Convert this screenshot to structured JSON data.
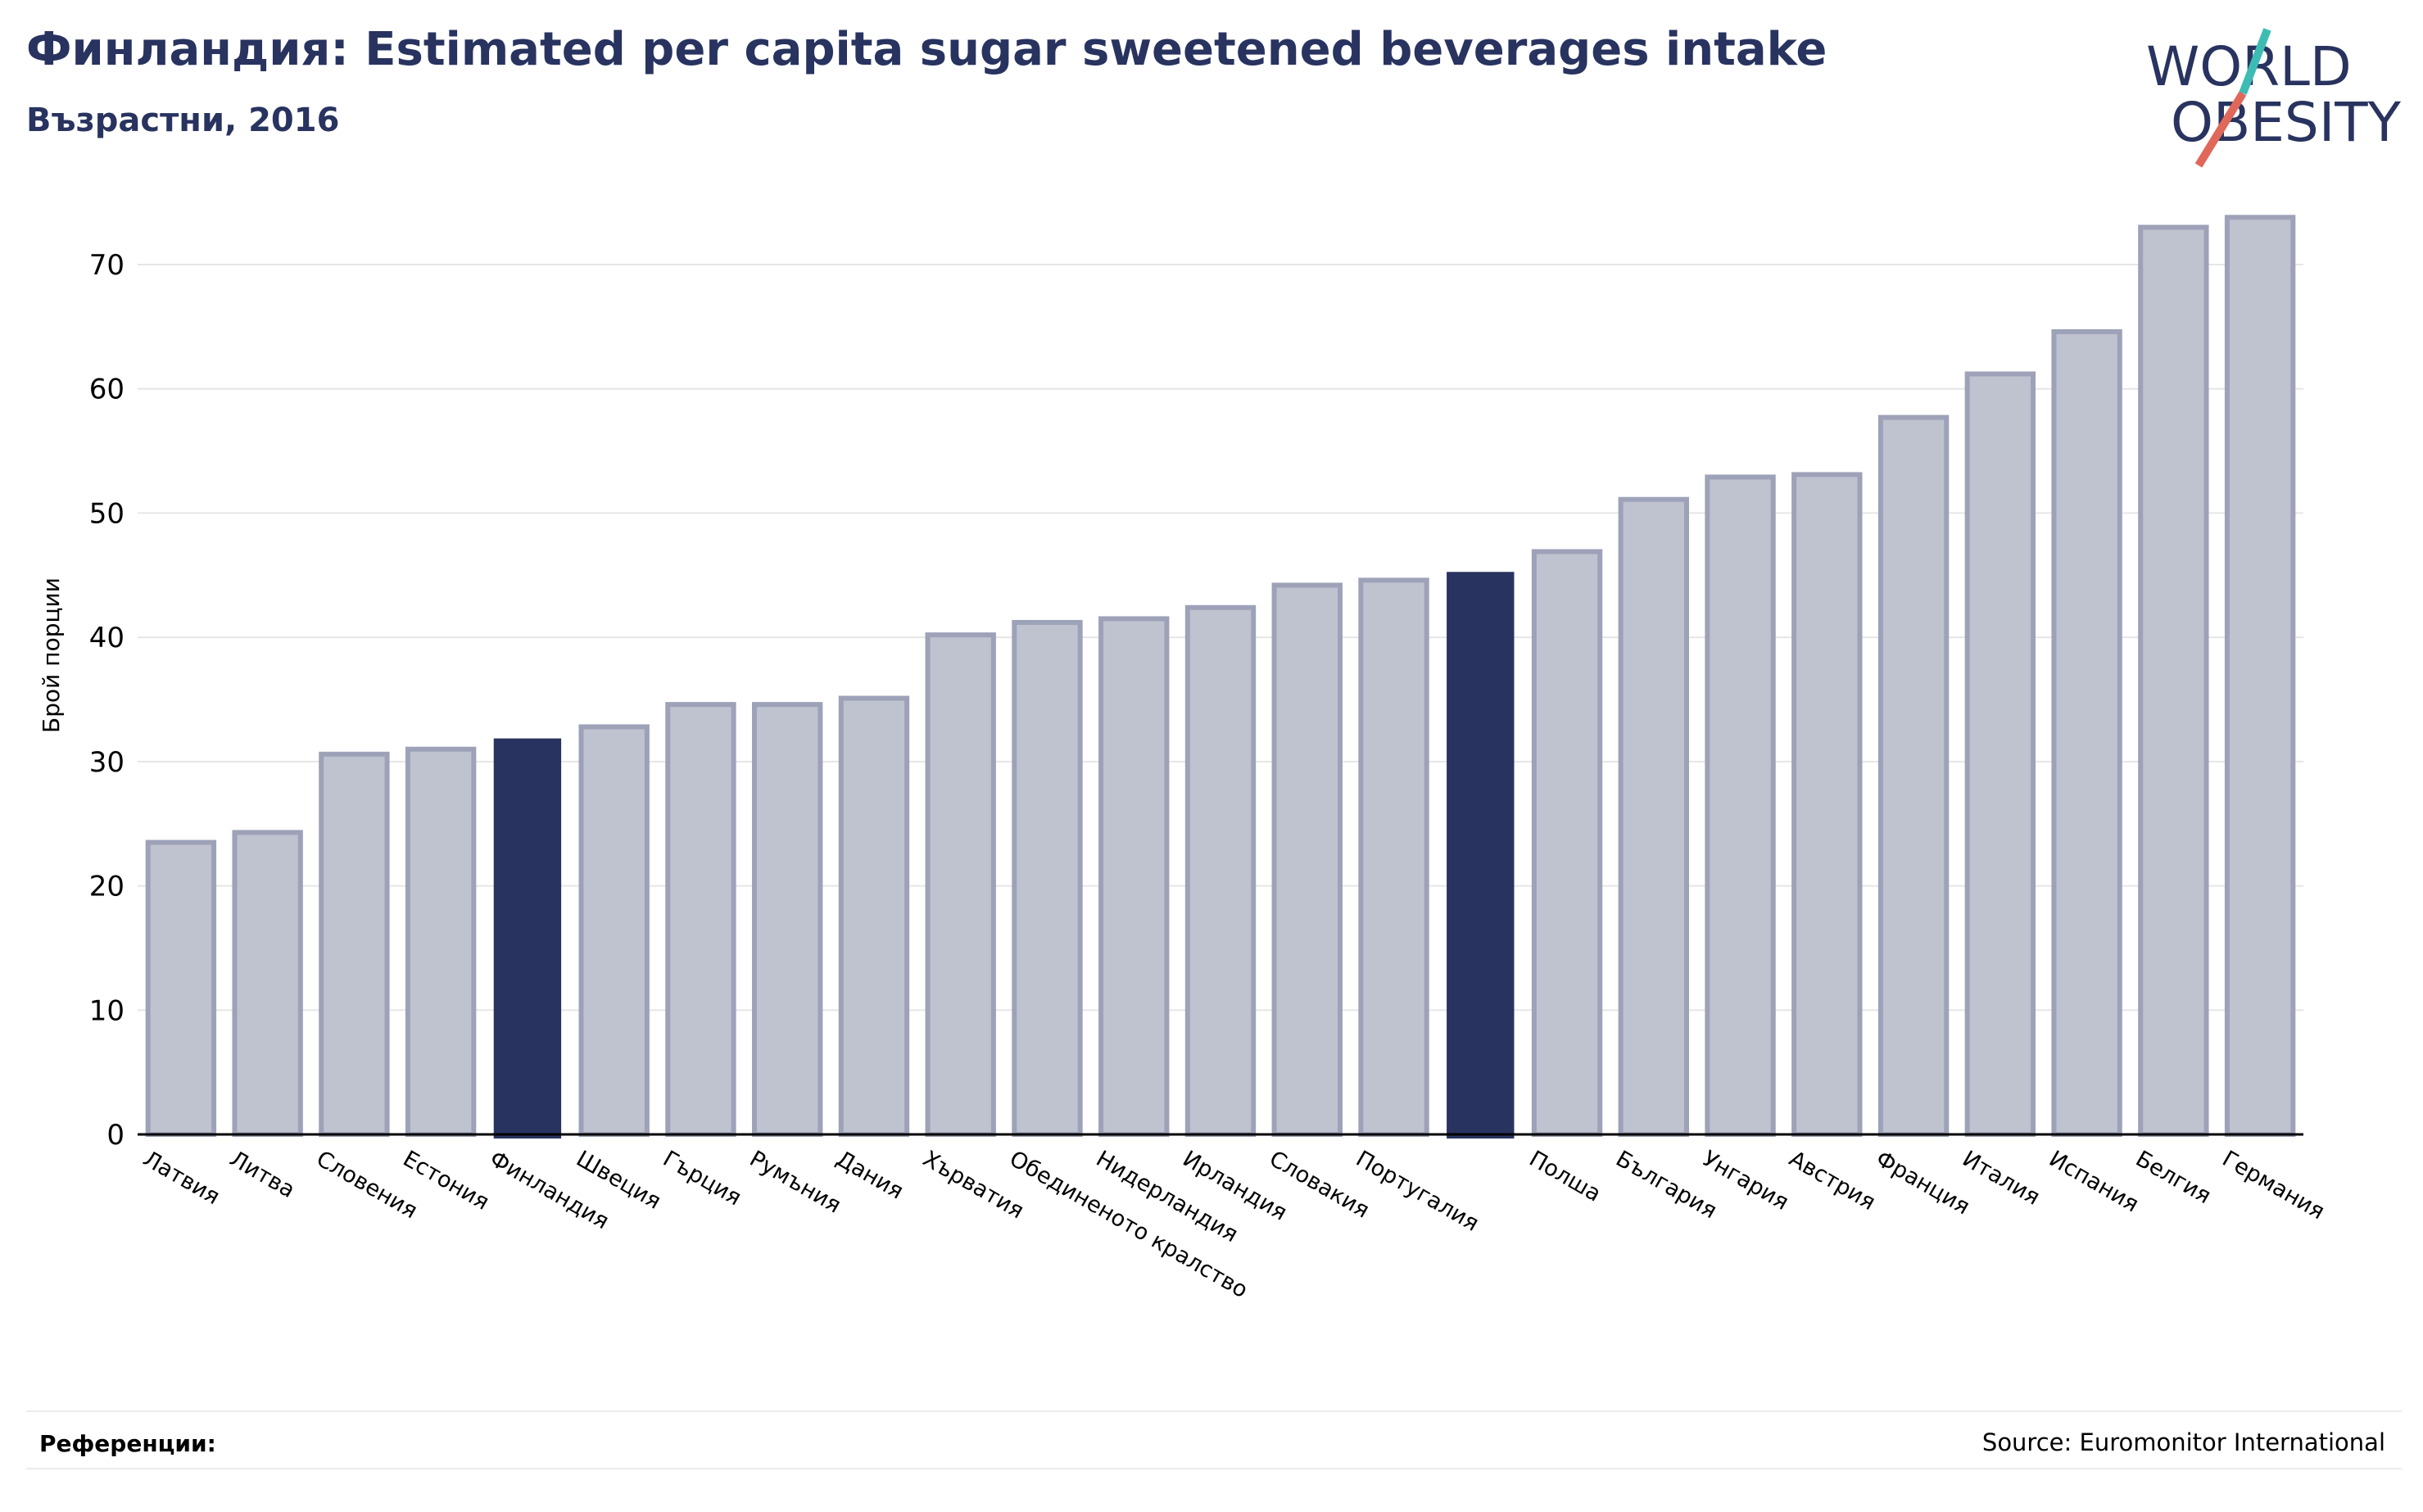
{
  "header": {
    "title": "Финландия: Estimated per capita sugar sweetened beverages intake",
    "subtitle": "Възрастни, 2016"
  },
  "logo": {
    "line1": "WORLD",
    "line2": "OBESITY"
  },
  "footer": {
    "references_label": "Референции:",
    "source": "Source: Euromonitor International"
  },
  "colors": {
    "title": "#28335f",
    "highlight_bar": "#28335f",
    "bar_fill": "#bfc2cf",
    "bar_stroke": "#9da2b8",
    "logo_teal": "#3dbcb4",
    "logo_coral": "#e0685a"
  },
  "chart_data": {
    "type": "bar",
    "ylabel": "Брой порции",
    "xlabel": "",
    "ylim": [
      0,
      75
    ],
    "yticks": [
      0,
      10,
      20,
      30,
      40,
      50,
      60,
      70
    ],
    "grid": true,
    "categories": [
      "Латвия",
      "Литва",
      "Словения",
      "Естония",
      "Финландия",
      "Швеция",
      "Гърция",
      "Румъния",
      "Дания",
      "Хърватия",
      "Обединеното кралство",
      "Нидерландия",
      "Ирландия",
      "Словакия",
      "Португалия",
      "",
      "Полша",
      "България",
      "Унгария",
      "Австрия",
      "Франция",
      "Италия",
      "Испания",
      "Белгия",
      "Германия"
    ],
    "values": [
      23.5,
      24.3,
      30.6,
      31.0,
      31.8,
      32.8,
      34.6,
      34.6,
      35.1,
      40.2,
      41.2,
      41.5,
      42.4,
      44.2,
      44.6,
      45.2,
      46.9,
      51.1,
      52.9,
      53.1,
      57.7,
      61.2,
      64.6,
      73.0,
      73.8
    ],
    "highlighted": [
      4,
      15
    ]
  }
}
